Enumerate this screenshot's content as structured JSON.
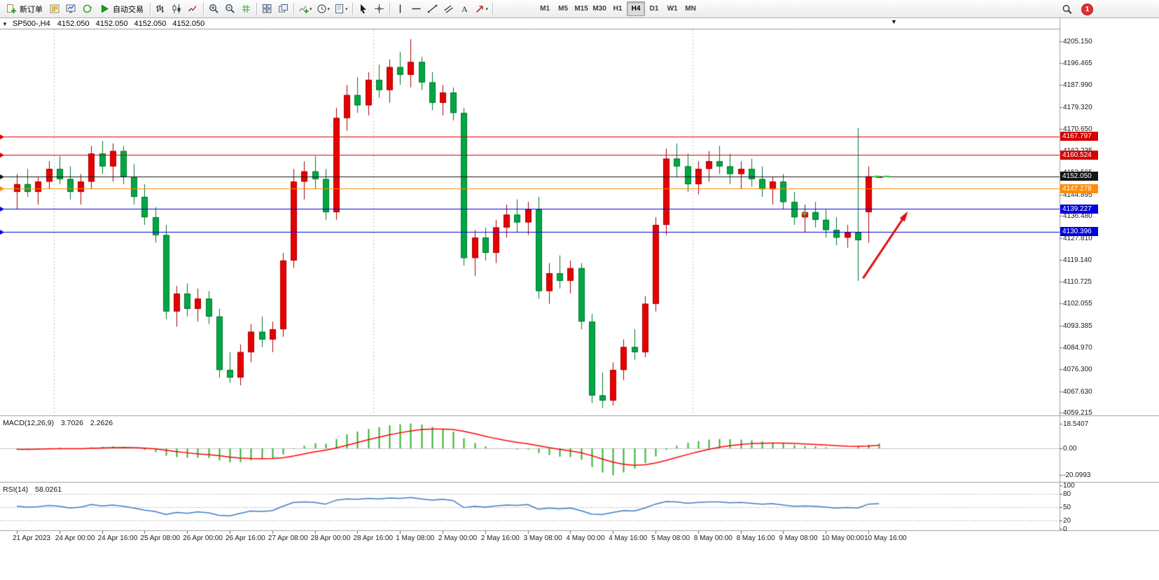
{
  "glyphs": {
    "oct_arrow": "▼",
    "shift_marker": "▼",
    "dropdown": "▾"
  },
  "toolbar": {
    "groups": [
      {
        "name": "trading",
        "items": [
          {
            "name": "new-order-button",
            "icon": "new-order-icon",
            "label": "新订单"
          },
          {
            "name": "market-watch-button",
            "icon": "market-watch-icon"
          },
          {
            "name": "new-chart-button",
            "icon": "monitor-chart-icon"
          },
          {
            "name": "refresh-button",
            "icon": "refresh-icon"
          },
          {
            "name": "autotrading-button",
            "icon": "play-icon",
            "label": "自动交易"
          }
        ]
      },
      {
        "name": "chart-type",
        "items": [
          {
            "name": "bar-chart-button",
            "icon": "bar-chart-icon"
          },
          {
            "name": "candlestick-button",
            "icon": "candlestick-icon"
          },
          {
            "name": "line-chart-button",
            "icon": "line-chart-icon"
          }
        ]
      },
      {
        "name": "zoom",
        "items": [
          {
            "name": "zoom-in-button",
            "icon": "zoom-in-icon"
          },
          {
            "name": "zoom-out-button",
            "icon": "zoom-out-icon"
          },
          {
            "name": "grid-button",
            "icon": "grid-icon"
          }
        ]
      },
      {
        "name": "windows",
        "items": [
          {
            "name": "tile-windows-button",
            "icon": "tile-windows-icon"
          },
          {
            "name": "arrange-windows-button",
            "icon": "arrange-windows-icon"
          }
        ]
      },
      {
        "name": "insert",
        "items": [
          {
            "name": "indicators-button",
            "icon": "indicator-add-icon",
            "dropdown": true
          },
          {
            "name": "periods-button",
            "icon": "clock-icon",
            "dropdown": true
          },
          {
            "name": "templates-button",
            "icon": "template-icon",
            "dropdown": true
          }
        ]
      },
      {
        "name": "cursor",
        "items": [
          {
            "name": "cursor-button",
            "icon": "cursor-icon"
          },
          {
            "name": "crosshair-button",
            "icon": "crosshair-icon"
          }
        ]
      },
      {
        "name": "drawing",
        "items": [
          {
            "name": "vertical-line-button",
            "icon": "vertical-line-icon"
          },
          {
            "name": "horizontal-line-button",
            "icon": "horizontal-line-icon"
          },
          {
            "name": "trendline-button",
            "icon": "trendline-icon"
          },
          {
            "name": "channel-button",
            "icon": "channel-icon"
          },
          {
            "name": "text-button",
            "icon": "text-icon"
          },
          {
            "name": "shapes-button",
            "icon": "shapes-icon",
            "dropdown": true
          }
        ]
      },
      {
        "name": "timeframes",
        "items": [
          {
            "name": "tf-m1",
            "label": "M1"
          },
          {
            "name": "tf-m5",
            "label": "M5"
          },
          {
            "name": "tf-m15",
            "label": "M15"
          },
          {
            "name": "tf-m30",
            "label": "M30"
          },
          {
            "name": "tf-h1",
            "label": "H1"
          },
          {
            "name": "tf-h4",
            "label": "H4",
            "active": true
          },
          {
            "name": "tf-d1",
            "label": "D1"
          },
          {
            "name": "tf-w1",
            "label": "W1"
          },
          {
            "name": "tf-mn",
            "label": "MN"
          }
        ]
      }
    ],
    "right": [
      {
        "name": "search-button",
        "icon": "magnifier-icon"
      },
      {
        "name": "notification-badge",
        "label": "1"
      }
    ]
  },
  "chart": {
    "title": {
      "symbol": "SP500-,H4",
      "ohlc": [
        "4152.050",
        "4152.050",
        "4152.050",
        "4152.050"
      ]
    },
    "price_axis": {
      "labels": [
        "4205.150",
        "4196.465",
        "4187.990",
        "4179.320",
        "4170.650",
        "4162.235",
        "4153.565",
        "4144.895",
        "4136.480",
        "4127.810",
        "4119.140",
        "4110.725",
        "4102.055",
        "4093.385",
        "4084.970",
        "4076.300",
        "4067.630",
        "4059.215"
      ]
    },
    "lines": [
      {
        "price": 4167.797,
        "label": "4167.797",
        "color": "#d40000"
      },
      {
        "price": 4160.524,
        "label": "4160.524",
        "color": "#d40000"
      },
      {
        "price": 4152.05,
        "label": "4152.050",
        "color": "#141414"
      },
      {
        "price": 4147.278,
        "label": "4147.278",
        "color": "#ff8c00"
      },
      {
        "price": 4139.227,
        "label": "4139.227",
        "color": "#0000dd"
      },
      {
        "price": 4130.396,
        "label": "4130.396",
        "color": "#0000dd"
      }
    ],
    "week_separators": [
      3.5,
      33.5,
      63.5
    ],
    "annotations": {
      "arrow": {
        "color": "#e01010",
        "from_idx": 79.5,
        "from_price": 4112,
        "to_idx": 83.5,
        "to_price": 4137
      },
      "plus_marker": {
        "color": "#2ee02e",
        "idx": 74,
        "price": 4137.5
      },
      "current_price_marker": {
        "color": "#2ee02e",
        "price": 4152.05
      }
    },
    "indicators": {
      "macd": {
        "label": "MACD(12,26,9)",
        "values": [
          "3.7026",
          "2.2626"
        ],
        "scale": [
          "18.5407",
          "0.00",
          "-20.0993"
        ]
      },
      "rsi": {
        "label": "RSI(14)",
        "value": "58.0261",
        "scale": [
          "100",
          "80",
          "50",
          "20",
          "0"
        ]
      }
    }
  },
  "chart_data": [
    {
      "type": "candlestick",
      "symbol": "SP500-",
      "timeframe": "H4",
      "ylim": [
        4058.7,
        4209.8
      ],
      "bull_color": "#e80000",
      "bear_color": "#00a843",
      "x_labels": [
        [
          0,
          "21 Apr 2023"
        ],
        [
          4,
          "24 Apr 00:00"
        ],
        [
          8,
          "24 Apr 16:00"
        ],
        [
          12,
          "25 Apr 08:00"
        ],
        [
          16,
          "26 Apr 00:00"
        ],
        [
          20,
          "26 Apr 16:00"
        ],
        [
          24,
          "27 Apr 08:00"
        ],
        [
          28,
          "28 Apr 00:00"
        ],
        [
          32,
          "28 Apr 16:00"
        ],
        [
          36,
          "1 May 08:00"
        ],
        [
          40,
          "2 May 00:00"
        ],
        [
          44,
          "2 May 16:00"
        ],
        [
          48,
          "3 May 08:00"
        ],
        [
          52,
          "4 May 00:00"
        ],
        [
          56,
          "4 May 16:00"
        ],
        [
          60,
          "5 May 08:00"
        ],
        [
          64,
          "8 May 00:00"
        ],
        [
          68,
          "8 May 16:00"
        ],
        [
          72,
          "9 May 08:00"
        ],
        [
          76,
          "10 May 00:00"
        ],
        [
          80,
          "10 May 16:00"
        ]
      ],
      "candles": [
        [
          4146,
          4153,
          4139,
          4149
        ],
        [
          4149,
          4155,
          4144,
          4146
        ],
        [
          4146,
          4152,
          4141,
          4150
        ],
        [
          4150,
          4158,
          4147,
          4155
        ],
        [
          4155,
          4160,
          4149,
          4151
        ],
        [
          4151,
          4156,
          4143,
          4146
        ],
        [
          4146,
          4153,
          4141,
          4150
        ],
        [
          4150,
          4164,
          4147,
          4161
        ],
        [
          4161,
          4166,
          4153,
          4156
        ],
        [
          4156,
          4165,
          4150,
          4162
        ],
        [
          4162,
          4164,
          4149,
          4152
        ],
        [
          4152,
          4157,
          4141,
          4144
        ],
        [
          4144,
          4149,
          4133,
          4136
        ],
        [
          4136,
          4140,
          4126,
          4129
        ],
        [
          4129,
          4133,
          4096,
          4099
        ],
        [
          4099,
          4109,
          4093,
          4106
        ],
        [
          4106,
          4110,
          4097,
          4100
        ],
        [
          4100,
          4108,
          4095,
          4104
        ],
        [
          4104,
          4107,
          4094,
          4097
        ],
        [
          4097,
          4100,
          4073,
          4076
        ],
        [
          4076,
          4083,
          4071,
          4073
        ],
        [
          4073,
          4086,
          4070,
          4083
        ],
        [
          4083,
          4094,
          4079,
          4091
        ],
        [
          4091,
          4097,
          4085,
          4088
        ],
        [
          4088,
          4095,
          4083,
          4092
        ],
        [
          4092,
          4122,
          4089,
          4119
        ],
        [
          4119,
          4155,
          4116,
          4150
        ],
        [
          4150,
          4158,
          4143,
          4154
        ],
        [
          4154,
          4160,
          4147,
          4151
        ],
        [
          4151,
          4155,
          4135,
          4138
        ],
        [
          4138,
          4179,
          4135,
          4175
        ],
        [
          4175,
          4188,
          4170,
          4184
        ],
        [
          4184,
          4191,
          4177,
          4180
        ],
        [
          4180,
          4193,
          4176,
          4190
        ],
        [
          4190,
          4196,
          4183,
          4186
        ],
        [
          4186,
          4198,
          4181,
          4195
        ],
        [
          4195,
          4201,
          4188,
          4192
        ],
        [
          4192,
          4206,
          4187,
          4197
        ],
        [
          4197,
          4199,
          4186,
          4189
        ],
        [
          4189,
          4193,
          4178,
          4181
        ],
        [
          4181,
          4188,
          4176,
          4185
        ],
        [
          4185,
          4187,
          4174,
          4177
        ],
        [
          4177,
          4179,
          4117,
          4120
        ],
        [
          4120,
          4131,
          4113,
          4128
        ],
        [
          4128,
          4132,
          4119,
          4122
        ],
        [
          4122,
          4135,
          4118,
          4132
        ],
        [
          4132,
          4141,
          4128,
          4137
        ],
        [
          4137,
          4143,
          4130,
          4134
        ],
        [
          4134,
          4142,
          4129,
          4139
        ],
        [
          4139,
          4144,
          4104,
          4107
        ],
        [
          4107,
          4118,
          4102,
          4114
        ],
        [
          4114,
          4121,
          4108,
          4111
        ],
        [
          4111,
          4119,
          4106,
          4116
        ],
        [
          4116,
          4118,
          4092,
          4095
        ],
        [
          4095,
          4098,
          4063,
          4066
        ],
        [
          4066,
          4075,
          4061,
          4064
        ],
        [
          4064,
          4079,
          4062,
          4076
        ],
        [
          4076,
          4088,
          4072,
          4085
        ],
        [
          4085,
          4092,
          4080,
          4083
        ],
        [
          4083,
          4105,
          4081,
          4102
        ],
        [
          4102,
          4136,
          4099,
          4133
        ],
        [
          4133,
          4163,
          4129,
          4159
        ],
        [
          4159,
          4165,
          4152,
          4156
        ],
        [
          4156,
          4161,
          4146,
          4149
        ],
        [
          4149,
          4158,
          4145,
          4155
        ],
        [
          4155,
          4162,
          4150,
          4158
        ],
        [
          4158,
          4164,
          4153,
          4156
        ],
        [
          4156,
          4161,
          4149,
          4153
        ],
        [
          4153,
          4158,
          4147,
          4155
        ],
        [
          4155,
          4159,
          4148,
          4151
        ],
        [
          4151,
          4156,
          4144,
          4147
        ],
        [
          4147,
          4152,
          4141,
          4150
        ],
        [
          4150,
          4153,
          4139,
          4142
        ],
        [
          4142,
          4146,
          4133,
          4136
        ],
        [
          4136,
          4141,
          4130,
          4138
        ],
        [
          4138,
          4142,
          4132,
          4135
        ],
        [
          4135,
          4139,
          4128,
          4131
        ],
        [
          4131,
          4136,
          4125,
          4128
        ],
        [
          4128,
          4133,
          4124,
          4130
        ],
        [
          4130,
          4171,
          4111,
          4127
        ],
        [
          4138,
          4156,
          4126,
          4152.05
        ],
        [
          4152.05,
          4152.05,
          4152.05,
          4152.05
        ]
      ]
    },
    {
      "type": "bar",
      "name": "MACD(12,26,9)",
      "ylim": [
        -23.5,
        22
      ],
      "bar_color": "#2db22d",
      "signal_color": "#ff0000",
      "values": [
        -0.5,
        -0.3,
        -0.4,
        0.2,
        0.5,
        0.0,
        -0.2,
        0.8,
        1.2,
        1.5,
        1.2,
        0.3,
        -1.2,
        -2.8,
        -5.5,
        -6.5,
        -7.0,
        -7.0,
        -7.2,
        -9.0,
        -10.5,
        -10.2,
        -9.0,
        -8.0,
        -7.2,
        -4.5,
        -0.5,
        2.0,
        3.8,
        3.5,
        7.0,
        10.5,
        12.5,
        14.5,
        15.8,
        17.2,
        18.0,
        18.5407,
        17.8,
        16.0,
        14.5,
        12.5,
        7.5,
        4.0,
        1.5,
        0.2,
        -0.3,
        -0.8,
        -0.8,
        -3.5,
        -5.0,
        -6.2,
        -6.5,
        -8.5,
        -14.0,
        -18.0,
        -20.0993,
        -18.0,
        -15.0,
        -11.0,
        -6.0,
        -1.0,
        2.0,
        4.0,
        5.5,
        6.5,
        7.0,
        6.8,
        6.5,
        6.0,
        5.2,
        4.5,
        3.8,
        2.5,
        1.8,
        1.5,
        0.8,
        0.2,
        0.0,
        1.2,
        2.8,
        3.7026
      ],
      "signal": [
        -0.8,
        -0.7,
        -0.6,
        -0.4,
        -0.2,
        -0.2,
        -0.2,
        0.0,
        0.3,
        0.5,
        0.7,
        0.6,
        0.2,
        -0.4,
        -1.4,
        -2.4,
        -3.3,
        -4.1,
        -4.7,
        -5.5,
        -6.5,
        -7.3,
        -7.6,
        -7.7,
        -7.6,
        -7.0,
        -5.7,
        -4.2,
        -2.6,
        -1.4,
        0.3,
        2.3,
        4.4,
        6.4,
        8.3,
        10.1,
        11.6,
        13.0,
        14.0,
        14.4,
        14.4,
        14.0,
        12.7,
        11.0,
        9.1,
        7.3,
        5.8,
        4.5,
        3.4,
        2.0,
        0.6,
        -0.7,
        -1.9,
        -3.2,
        -5.4,
        -7.9,
        -10.3,
        -11.9,
        -12.6,
        -12.3,
        -11.0,
        -9.0,
        -6.8,
        -4.6,
        -2.6,
        -0.8,
        0.8,
        2.0,
        2.9,
        3.5,
        3.8,
        4.0,
        4.0,
        3.7,
        3.3,
        2.9,
        2.5,
        2.0,
        1.6,
        1.5,
        1.7,
        2.2626
      ]
    },
    {
      "type": "line",
      "name": "RSI(14)",
      "ylim": [
        0,
        100
      ],
      "line_color": "#3e7cc4",
      "levels": [
        80,
        50,
        20
      ],
      "values": [
        52,
        50,
        51,
        54,
        52,
        48,
        50,
        56,
        53,
        55,
        52,
        48,
        43,
        40,
        33,
        38,
        36,
        39,
        37,
        31,
        30,
        36,
        41,
        40,
        42,
        52,
        61,
        62,
        61,
        57,
        66,
        69,
        68,
        70,
        69,
        71,
        70,
        72,
        69,
        66,
        68,
        65,
        49,
        52,
        50,
        53,
        55,
        54,
        56,
        45,
        48,
        46,
        48,
        42,
        34,
        33,
        38,
        42,
        41,
        48,
        57,
        63,
        62,
        59,
        61,
        62,
        62,
        60,
        61,
        59,
        57,
        58,
        55,
        52,
        53,
        52,
        50,
        48,
        49,
        48,
        57,
        58.0261
      ]
    }
  ]
}
